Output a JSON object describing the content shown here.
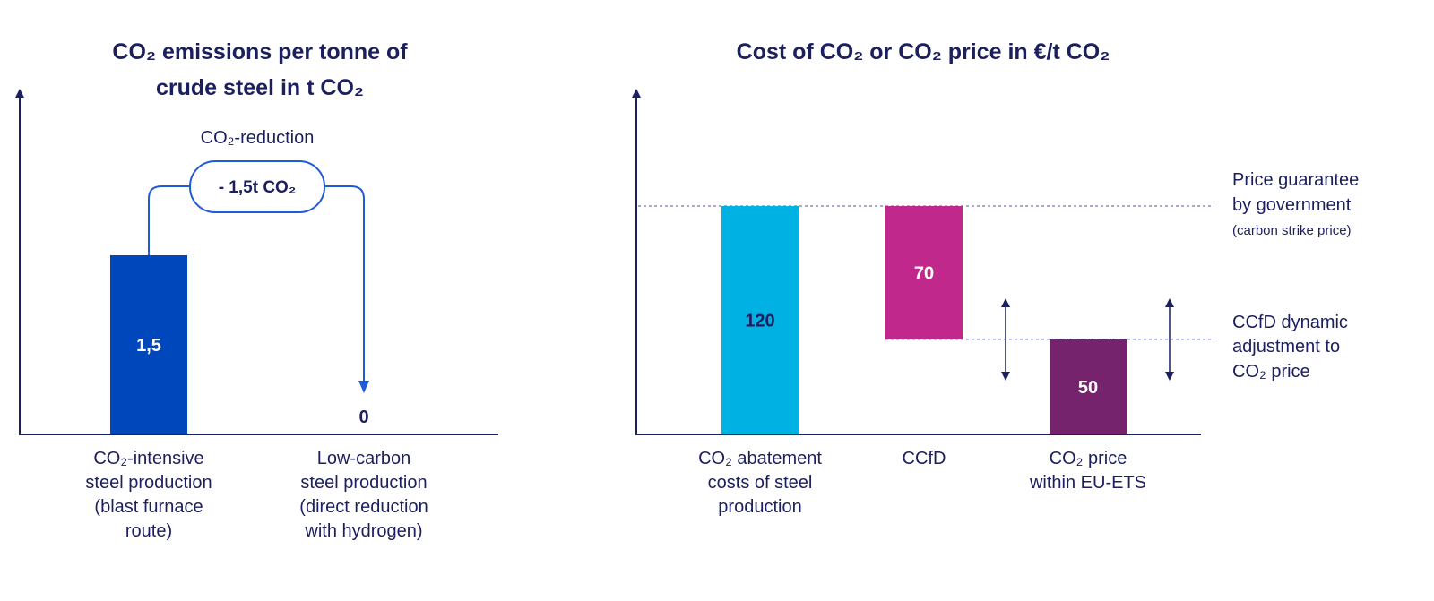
{
  "chart_data": [
    {
      "type": "bar",
      "title": [
        "CO₂ emissions per tonne of",
        "crude steel in t CO₂"
      ],
      "categories": [
        [
          "CO₂-intensive",
          "steel production",
          "(blast furnace",
          "route)"
        ],
        [
          "Low-carbon",
          "steel production",
          "(direct reduction",
          "with hydrogen)"
        ]
      ],
      "values": [
        1.5,
        0
      ],
      "value_labels": [
        "1,5",
        "0"
      ],
      "ylim": [
        0,
        1.95
      ],
      "annotation": {
        "heading": "CO₂-reduction",
        "label": "- 1,5t CO₂"
      },
      "colors": {
        "bar": "#0047bb",
        "connector": "#1f5bd6",
        "axis": "#1b1f5e"
      }
    },
    {
      "type": "waterfall",
      "title": [
        "Cost of CO₂ or CO₂ price in €/t CO₂"
      ],
      "categories": [
        [
          "CO₂ abatement",
          "costs of steel",
          "production"
        ],
        [
          "CCfD"
        ],
        [
          "CO₂ price",
          "within EU-ETS"
        ]
      ],
      "bars": [
        {
          "value": 120,
          "base": 0,
          "label": "120",
          "color": "#00b2e3",
          "label_color": "#1b1f5e"
        },
        {
          "value": 70,
          "base": 50,
          "label": "70",
          "color": "#c0288c",
          "label_color": "#ffffff"
        },
        {
          "value": 50,
          "base": 0,
          "label": "50",
          "color": "#74236c",
          "label_color": "#ffffff"
        }
      ],
      "ylim": [
        0,
        180
      ],
      "reference_lines": [
        {
          "value": 120,
          "label": [
            "Price guarantee",
            "by government"
          ],
          "sublabel": "(carbon strike price)"
        },
        {
          "value": 50,
          "label": [
            "CCfD dynamic",
            "adjustment to",
            "CO₂ price"
          ]
        }
      ],
      "colors": {
        "axis": "#1b1f5e",
        "reference": "#8a8fc4"
      }
    }
  ]
}
